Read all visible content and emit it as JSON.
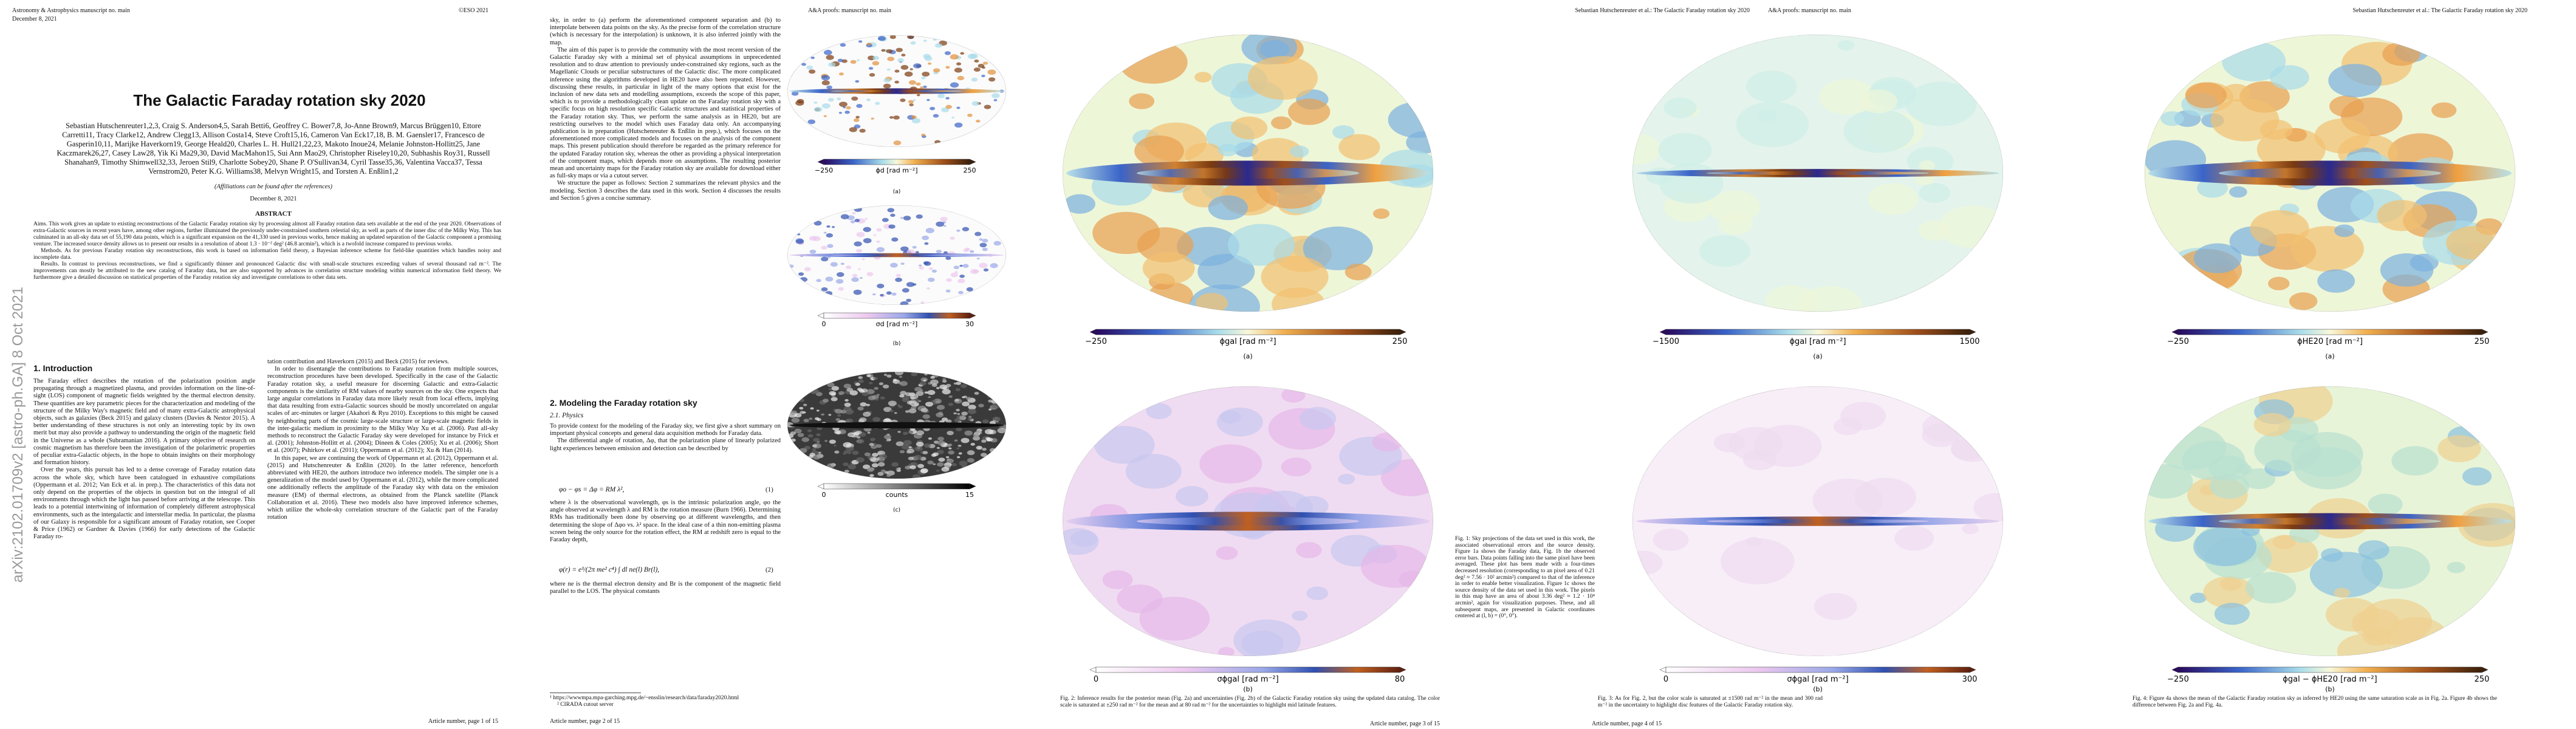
{
  "arxiv_stamp": "arXiv:2102.01709v2  [astro-ph.GA]  8 Oct 2021",
  "page1": {
    "journal": "Astronomy & Astrophysics manuscript no. main",
    "date_line": "December 8, 2021",
    "copyright": "©ESO 2021",
    "title": "The Galactic Faraday rotation sky 2020",
    "authors": "Sebastian Hutschenreuter1,2,3, Craig S. Anderson4,5, Sarah Betti6, Geoffrey C. Bower7,8, Jo-Anne Brown9, Marcus Brüggen10, Ettore Carretti11, Tracy Clarke12, Andrew Clegg13, Allison Costa14, Steve Croft15,16, Cameron Van Eck17,18, B. M. Gaensler17, Francesco de Gasperin10,11, Marijke Haverkorn19, George Heald20, Charles L. H. Hull21,22,23, Makoto Inoue24, Melanie Johnston-Hollitt25, Jane Kaczmarek26,27, Casey Law28, Yik Ki Ma29,30, David MacMahon15, Sui Ann Mao29, Christopher Riseley10,20, Subhashis Roy31, Russell Shanahan9, Timothy Shimwell32,33, Jeroen Stil9, Charlotte Sobey20, Shane P. O'Sullivan34, Cyril Tasse35,36, Valentina Vacca37, Tessa Vernstrom20, Peter K.G. Williams38, Melvyn Wright15, and Torsten A. Enßlin1,2",
    "affiliations_note": "(Affiliations can be found after the references)",
    "date": "December 8, 2021",
    "abstract_heading": "ABSTRACT",
    "abstract": [
      "Aims. This work gives an update to existing reconstructions of the Galactic Faraday rotation sky by processing almost all Faraday rotation data sets available at the end of the year 2020. Observations of extra-Galactic sources in recent years have, among other regions, further illuminated the previously under-constrained southern celestial sky, as well as parts of the inner disc of the Milky Way. This has culminated in an all-sky data set of 55,190 data points, which is a significant expansion on the 41,330 used in previous works, hence making an updated separation of the Galactic component a promising venture. The increased source density allows us to present our results in a resolution of about 1.3 · 10⁻² deg² (46.8 arcmin²), which is a twofold increase compared to previous works.",
      "Methods. As for previous Faraday rotation sky reconstructions, this work is based on information field theory, a Bayesian inference scheme for field-like quantities which handles noisy and incomplete data.",
      "Results. In contrast to previous reconstructions, we find a significantly thinner and pronounced Galactic disc with small-scale structures exceeding values of several thousand rad m⁻². The improvements can mostly be attributed to the new catalog of Faraday data, but are also supported by advances in correlation structure modeling within numerical information field theory. We furthermore give a detailed discussion on statistical properties of the Faraday rotation sky and investigate correlations to other data sets."
    ],
    "intro_heading": "1. Introduction",
    "left": [
      "The Faraday effect describes the rotation of the polarization position angle propagating through a magnetized plasma, and provides information on the line-of-sight (LOS) component of magnetic fields weighted by the thermal electron density. These quantities are key parametric pieces for the characterization and modeling of the structure of the Milky Way's magnetic field and of many extra-Galactic astrophysical objects, such as galaxies (Beck 2015) and galaxy clusters (Davies & Nestor 2015). A better understanding of these structures is not only an interesting topic by its own merit but may also provide a pathway to understanding the origin of the magnetic field in the Universe as a whole (Subramanian 2016). A primary objective of research on cosmic magnetism has therefore been the investigation of the polarimetric properties of peculiar extra-Galactic objects, in the hope to obtain insights on their morphology and formation history.",
      "Over the years, this pursuit has led to a dense coverage of Faraday rotation data across the whole sky, which have been catalogued in exhaustive compilations (Oppermann et al. 2012; Van Eck et al. in prep.). The characteristics of this data not only depend on the properties of the objects in question but on the integral of all environments through which the light has passed before arriving at the telescope. This leads to a potential intertwining of information of completely different astrophysical environments, such as the intergalactic and interstellar media. In particular, the plasma of our Galaxy is responsible for a significant amount of Faraday rotation, see Cooper & Price (1962) or Gardner & Davies (1966) for early detections of the Galactic Faraday ro-"
    ],
    "right": [
      "tation contribution and Haverkorn (2015) and Beck (2015) for reviews.",
      "In order to disentangle the contributions to Faraday rotation from multiple sources, reconstruction procedures have been developed. Specifically in the case of the Galactic Faraday rotation sky, a useful measure for discerning Galactic and extra-Galactic components is the similarity of RM values of nearby sources on the sky. One expects that large angular correlations in Faraday data more likely result from local effects, implying that data resulting from extra-Galactic sources should be mostly uncorrelated on angular scales of arc-minutes or larger (Akahori & Ryu 2010). Exceptions to this might be caused by neighboring parts of the cosmic large-scale structure or large-scale magnetic fields in the inter-galactic medium in proximity to the Milky Way Xu et al. (2006). Past all-sky methods to reconstruct the Galactic Faraday sky were developed for instance by Frick et al. (2001); Johnston-Hollitt et al. (2004); Dineen & Coles (2005); Xu et al. (2006); Short et al. (2007); Pshirkov et al. (2011); Oppermann et al. (2012); Xu & Han (2014).",
      "In this paper, we are continuing the work of Oppermann et al. (2012), Oppermann et al. (2015) and Hutschenreuter & Enßlin (2020). In the latter reference, henceforth abbreviated with HE20, the authors introduce two inference models. The simpler one is a generalization of the model used by Oppermann et al. (2012), while the more complicated one additionally reflects the amplitude of the Faraday sky with data on the emission measure (EM) of thermal electrons, as obtained from the Planck satellite (Planck Collaboration et al. 2016). These two models also have improved inference schemes, which utilize the whole-sky correlation structure of the Galactic part of the Faraday rotation"
    ],
    "footer": "Article number, page 1 of 15"
  },
  "page2": {
    "header": "A&A proofs: manuscript no. main",
    "top": [
      "sky, in order to (a) perform the aforementioned component separation and (b) to interpolate between data points on the sky. As the precise form of the correlation structure (which is necessary for the interpolation) is unknown, it is also inferred jointly with the map.",
      "The aim of this paper is to provide the community with the most recent version of the Galactic Faraday sky with a minimal set of physical assumptions in unprecedented resolution and to draw attention to previously under-constrained sky regions, such as the Magellanic Clouds or peculiar substructures of the Galactic disc. The more complicated inference using the algorithms developed in HE20 have also been repeated. However, discussing these results, in particular in light of the many options that exist for the inclusion of new data sets and modelling assumptions, exceeds the scope of this paper, which is to provide a methodologically clean update on the Faraday rotation sky with a specific focus on high resolution specific Galactic structures and statistical properties of the Faraday rotation sky. Thus, we perform the same analysis as in HE20, but are restricting ourselves to the model which uses Faraday data only. An accompanying publication is in preparation (Hutschenreuter & Enßlin in prep.), which focuses on the aforementioned more complicated models and focuses on the analysis of the component maps. This present publication should therefore be regarded as the primary reference for the updated Faraday rotation sky, whereas the other as providing a physical interpretation of the component maps, which depends more on assumptions. The resulting posterior mean and uncertainty maps for the Faraday rotation sky are available for download either as full-sky maps or via a cutout server.",
      "We structure the paper as follows: Section 2 summarizes the relevant physics and the modeling. Section 3 describes the data used in this work. Section 4 discusses the results and Section 5 gives a concise summary."
    ],
    "section": "2. Modeling the Faraday rotation sky",
    "subsection": "2.1. Physics",
    "physics": [
      "To provide context for the modeling of the Faraday sky, we first give a short summary on important physical concepts and general data acquisition methods for Faraday data.",
      "The differential angle of rotation, Δφ, that the polarization plane of linearly polarized light experiences between emission and detection can be described by"
    ],
    "eq1": "φo − φs = Δφ = RM λ²,",
    "eq1_number": "(1)",
    "after_eq1": "where λ is the observational wavelength, φs is the intrinsic polarization angle, φo the angle observed at wavelength λ and RM is the rotation measure (Burn 1966). Determining RMs has traditionally been done by observing φo at different wavelengths, and then determining the slope of Δφo vs. λ² space. In the ideal case of a thin non-emitting plasma screen being the only source for the rotation effect, the RM at redshift zero is equal to the Faraday depth,",
    "eq2": "φ(r) = e³/(2π me² c⁴) ∫ dl ne(l) Br(l),",
    "eq2_number": "(2)",
    "after_eq2": "where ne is the thermal electron density and Br is the component of the magnetic field parallel to the LOS. The physical constants",
    "footnotes": [
      "¹ https://wwwmpa.mpa-garching.mpg.de/~ensslin/research/data/faraday2020.html",
      "² CIRADA cutout server"
    ],
    "footer": "Article number, page 2 of 15"
  },
  "page3": {
    "header": "Sebastian Hutschenreuter et al.: The Galactic Faraday rotation sky 2020",
    "footer": "Article number, page 3 of 15"
  },
  "page4": {
    "header": "A&A proofs: manuscript no. main",
    "footer": "Article number, page 4 of 15"
  },
  "page5": {
    "header": "Sebastian Hutschenreuter et al.: The Galactic Faraday rotation sky 2020"
  },
  "figures": [
    {
      "panels": [
        {
          "min": "−250",
          "label": "ϕd [rad m⁻²]",
          "max": "250",
          "tag": "(a)"
        },
        {
          "min": "0",
          "label": "σd [rad m⁻²]",
          "max": "30",
          "tag": "(b)"
        },
        {
          "min": "0",
          "label": "counts",
          "max": "15",
          "tag": "(c)"
        }
      ],
      "caption": "Fig. 1: Sky projections of the data set used in this work, the associated observational errors and the source density. Figure 1a shows the Faraday data, Fig. 1b the observed error bars. Data points falling into the same pixel have been averaged. These plot has been made with a four-times decreased resolution (corresponding to an pixel area of 0.21 deg² ≈ 7.56 · 10² arcmin²) compared to that of the inference in order to enable better visualization. Figure 1c shows the source density of the data set used in this work. The pixels in this map have an area of about 3.36 deg² ≈ 1.2 · 10⁴ arcmin², again for visualization purposes. These, and all subsequent maps, are presented in Galactic coordinates centered at (l, b) = (0°, 0°)."
    },
    {
      "panels": [
        {
          "min": "−250",
          "label": "ϕgal [rad m⁻²]",
          "max": "250",
          "tag": "(a)"
        },
        {
          "min": "0",
          "label": "σϕgal [rad m⁻²]",
          "max": "80",
          "tag": "(b)"
        }
      ],
      "caption": "Fig. 2: Inference results for the posterior mean (Fig. 2a) and uncertainties (Fig. 2b) of the Galactic Faraday rotation sky using the updated data catalog. The color scale is saturated at ±250 rad m⁻² for the mean and at 80 rad m⁻² for the uncertainties to highlight mid latitude features."
    },
    {
      "panels": [
        {
          "min": "−1500",
          "label": "ϕgal [rad m⁻²]",
          "max": "1500",
          "tag": "(a)"
        },
        {
          "min": "0",
          "label": "σϕgal [rad m⁻²]",
          "max": "300",
          "tag": "(b)"
        }
      ],
      "caption": "Fig. 3: As for Fig. 2, but the color scale is saturated at ±1500 rad m⁻² in the mean and 300 rad m⁻² in the uncertainty to highlight disc features of the Galactic Faraday rotation sky."
    },
    {
      "panels": [
        {
          "min": "−250",
          "label": "ϕHE20 [rad m⁻²]",
          "max": "250",
          "tag": "(a)"
        },
        {
          "min": "−250",
          "label": "ϕgal − ϕHE20 [rad m⁻²]",
          "max": "250",
          "tag": "(b)"
        }
      ],
      "caption": "Fig. 4: Figure 4a shows the mean of the Galactic Faraday rotation sky as inferred by HE20 using the same saturation scale as in Fig. 2a. Figure 4b shows the difference between Fig. 2a and Fig. 4a."
    }
  ]
}
